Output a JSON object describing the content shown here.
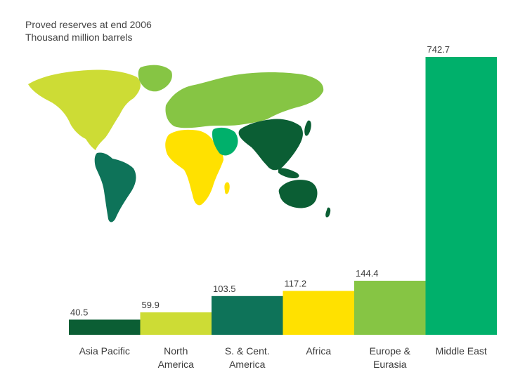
{
  "title": "Proved reserves at end 2006",
  "subtitle": "Thousand million barrels",
  "chart_data": {
    "type": "bar",
    "title": "Proved reserves at end 2006",
    "subtitle": "Thousand million barrels",
    "categories": [
      [
        "Asia Pacific"
      ],
      [
        "North",
        "America"
      ],
      [
        "S. & Cent.",
        "America"
      ],
      [
        "Africa"
      ],
      [
        "Europe &",
        "Eurasia"
      ],
      [
        "Middle East"
      ]
    ],
    "values": [
      40.5,
      59.9,
      103.5,
      117.2,
      144.4,
      742.7
    ],
    "value_labels": [
      "40.5",
      "59.9",
      "103.5",
      "117.2",
      "144.4",
      "742.7"
    ],
    "colors": [
      "#0b5e34",
      "#cddc35",
      "#0e7359",
      "#ffe100",
      "#86c544",
      "#00b06b"
    ],
    "ylim": [
      0,
      742.7
    ],
    "grid": false,
    "legend": "none"
  }
}
